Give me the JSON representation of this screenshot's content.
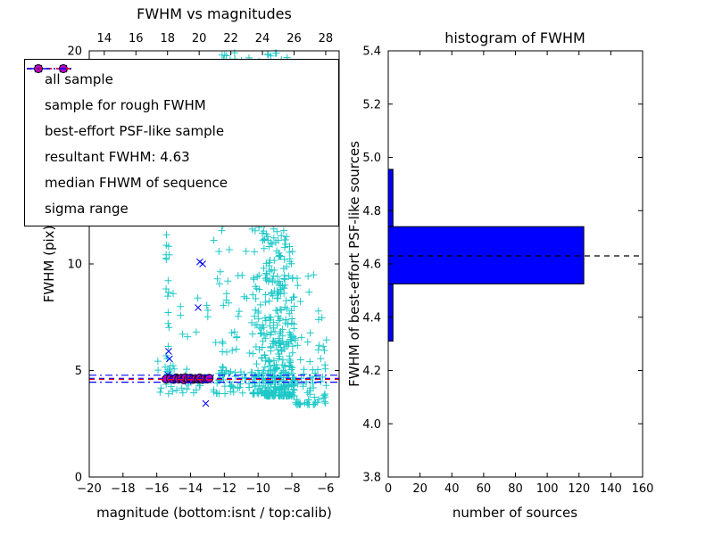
{
  "colors": {
    "all_sample": "#1ec8c8",
    "rough_sample": "#0000ff",
    "psf_sample_fill": "#bf00bf",
    "psf_sample_edge": "#000000",
    "resultant_line": "#0000ff",
    "median_line": "#ff0000",
    "sigma_line": "#0000ff",
    "hist_bar": "#0000ff",
    "hist_marker_line": "#000000",
    "axes": "#000000"
  },
  "chart_data": [
    {
      "type": "scatter",
      "title": "FWHM vs magnitudes",
      "xlabel": "magnitude (bottom:isnt / top:calib)",
      "ylabel": "FWHM (pix)",
      "xlim": [
        -20,
        -5.2
      ],
      "ylim": [
        0,
        20
      ],
      "grid": false,
      "legend_position": "upper-left",
      "xticks": [
        {
          "v": -20,
          "l": "−20"
        },
        {
          "v": -18,
          "l": "−18"
        },
        {
          "v": -16,
          "l": "−16"
        },
        {
          "v": -14,
          "l": "−14"
        },
        {
          "v": -12,
          "l": "−12"
        },
        {
          "v": -10,
          "l": "−10"
        },
        {
          "v": -8,
          "l": "−8"
        },
        {
          "v": -6,
          "l": "−6"
        }
      ],
      "yticks": [
        {
          "v": 0,
          "l": "0"
        },
        {
          "v": 5,
          "l": "5"
        },
        {
          "v": 10,
          "l": "10"
        },
        {
          "v": 15,
          "l": "15"
        },
        {
          "v": 20,
          "l": "20"
        }
      ],
      "top_axis": {
        "lim": [
          13.05,
          28.85
        ],
        "ticks": [
          {
            "v": 14,
            "l": "14"
          },
          {
            "v": 16,
            "l": "16"
          },
          {
            "v": 18,
            "l": "18"
          },
          {
            "v": 20,
            "l": "20"
          },
          {
            "v": 22,
            "l": "22"
          },
          {
            "v": 24,
            "l": "24"
          },
          {
            "v": 26,
            "l": "26"
          },
          {
            "v": 28,
            "l": "28"
          }
        ]
      },
      "series": [
        {
          "name": "all sample",
          "marker": "plus",
          "color": "#1ec8c8",
          "seed": 42,
          "clusters": [
            {
              "n": 430,
              "x": [
                -9.65,
                -7.85
              ],
              "y": [
                3.8,
                20.0
              ],
              "pow": 2.3
            },
            {
              "n": 110,
              "x": [
                -10.45,
                -9.65
              ],
              "y": [
                3.9,
                19.5
              ],
              "pow": 2.2
            },
            {
              "n": 75,
              "x": [
                -12.6,
                -10.45
              ],
              "y": [
                3.9,
                20.0
              ],
              "pow": 1.9
            },
            {
              "n": 65,
              "x": [
                -7.85,
                -5.9
              ],
              "y": [
                3.4,
                9.5
              ],
              "pow": 2.6
            },
            {
              "n": 55,
              "x": [
                -16.1,
                -12.6
              ],
              "y": [
                3.9,
                20.0
              ],
              "pow": 2.2
            },
            {
              "n": 22,
              "x": [
                -15.45,
                -15.25
              ],
              "y": [
                4.4,
                11.5
              ],
              "pow": 1.5
            },
            {
              "n": 12,
              "x": [
                -12.3,
                -10.5
              ],
              "y": [
                18.8,
                20.0
              ],
              "pow": 1.0
            },
            {
              "n": 60,
              "x": [
                -12.6,
                -6.1
              ],
              "y": [
                4.15,
                5.05
              ],
              "pow": 1.0
            }
          ]
        },
        {
          "name": "sample for rough FWHM",
          "marker": "cross",
          "color": "#0000ff",
          "points": [
            [
              -15.3,
              5.9
            ],
            [
              -15.25,
              5.55
            ],
            [
              -15.35,
              4.8
            ],
            [
              -15.05,
              4.65
            ],
            [
              -14.9,
              4.55
            ],
            [
              -14.7,
              4.6
            ],
            [
              -14.35,
              4.65
            ],
            [
              -14.15,
              4.5
            ],
            [
              -14.0,
              4.6
            ],
            [
              -13.75,
              4.55
            ],
            [
              -13.55,
              7.95
            ],
            [
              -13.45,
              10.1
            ],
            [
              -13.28,
              10.0
            ],
            [
              -13.4,
              4.6
            ],
            [
              -13.1,
              3.45
            ],
            [
              -12.95,
              4.55
            ]
          ]
        },
        {
          "name": "best-effort PSF-like sample",
          "marker": "circle",
          "fill": "#bf00bf",
          "edge": "#000000",
          "points": [
            [
              -15.45,
              4.6
            ],
            [
              -15.2,
              4.62
            ],
            [
              -15.0,
              4.58
            ],
            [
              -14.85,
              4.65
            ],
            [
              -14.7,
              4.6
            ],
            [
              -14.55,
              4.63
            ],
            [
              -14.4,
              4.57
            ],
            [
              -14.3,
              4.66
            ],
            [
              -14.15,
              4.6
            ],
            [
              -14.0,
              4.64
            ],
            [
              -13.85,
              4.58
            ],
            [
              -13.7,
              4.62
            ],
            [
              -13.55,
              4.6
            ],
            [
              -13.45,
              4.65
            ],
            [
              -13.3,
              4.58
            ],
            [
              -13.15,
              4.62
            ],
            [
              -13.0,
              4.6
            ],
            [
              -12.9,
              4.63
            ]
          ]
        }
      ],
      "lines": [
        {
          "name": "resultant FWHM",
          "y": 4.63,
          "color": "#0000ff",
          "style": "dashed"
        },
        {
          "name": "median FHWM of sequence",
          "y": 4.58,
          "color": "#ff0000",
          "style": "dashed"
        },
        {
          "name": "sigma range upper",
          "y": 4.78,
          "color": "#0000ff",
          "style": "dashdot"
        },
        {
          "name": "sigma range lower",
          "y": 4.45,
          "color": "#0000ff",
          "style": "dashdot"
        }
      ],
      "legend": {
        "items": [
          {
            "label": "all sample",
            "type": "plus",
            "color": "#1ec8c8"
          },
          {
            "label": "sample for rough FWHM",
            "type": "cross",
            "color": "#0000ff"
          },
          {
            "label": "best-effort PSF-like sample",
            "type": "circle",
            "color": "#bf00bf",
            "edge": "#000000"
          },
          {
            "label": "resultant FWHM: 4.63",
            "type": "dashed",
            "color": "#0000ff"
          },
          {
            "label": "median FHWM of sequence",
            "type": "dashed",
            "color": "#ff0000"
          },
          {
            "label": "sigma range",
            "type": "dashdot",
            "color": "#0000ff"
          }
        ]
      }
    },
    {
      "type": "bar-horizontal",
      "title": "histogram of FWHM",
      "xlabel": "number of sources",
      "ylabel": "FWHM of best-effort PSF-like sources",
      "xlim": [
        0,
        160
      ],
      "ylim": [
        3.8,
        5.4
      ],
      "grid": false,
      "xticks": [
        {
          "v": 0,
          "l": "0"
        },
        {
          "v": 20,
          "l": "20"
        },
        {
          "v": 40,
          "l": "40"
        },
        {
          "v": 60,
          "l": "60"
        },
        {
          "v": 80,
          "l": "80"
        },
        {
          "v": 100,
          "l": "100"
        },
        {
          "v": 120,
          "l": "120"
        },
        {
          "v": 140,
          "l": "140"
        },
        {
          "v": 160,
          "l": "160"
        }
      ],
      "yticks": [
        {
          "v": 3.8,
          "l": "3.8"
        },
        {
          "v": 4.0,
          "l": "4.0"
        },
        {
          "v": 4.2,
          "l": "4.2"
        },
        {
          "v": 4.4,
          "l": "4.4"
        },
        {
          "v": 4.6,
          "l": "4.6"
        },
        {
          "v": 4.8,
          "l": "4.8"
        },
        {
          "v": 5.0,
          "l": "5.0"
        },
        {
          "v": 5.2,
          "l": "5.2"
        },
        {
          "v": 5.4,
          "l": "5.4"
        }
      ],
      "bins": [
        {
          "from": 4.31,
          "to": 4.525,
          "count": 3
        },
        {
          "from": 4.525,
          "to": 4.74,
          "count": 123
        },
        {
          "from": 4.74,
          "to": 4.955,
          "count": 3
        }
      ],
      "bar_color": "#0000ff",
      "marker_line": {
        "y": 4.63,
        "color": "#000000",
        "style": "dashed"
      }
    }
  ]
}
